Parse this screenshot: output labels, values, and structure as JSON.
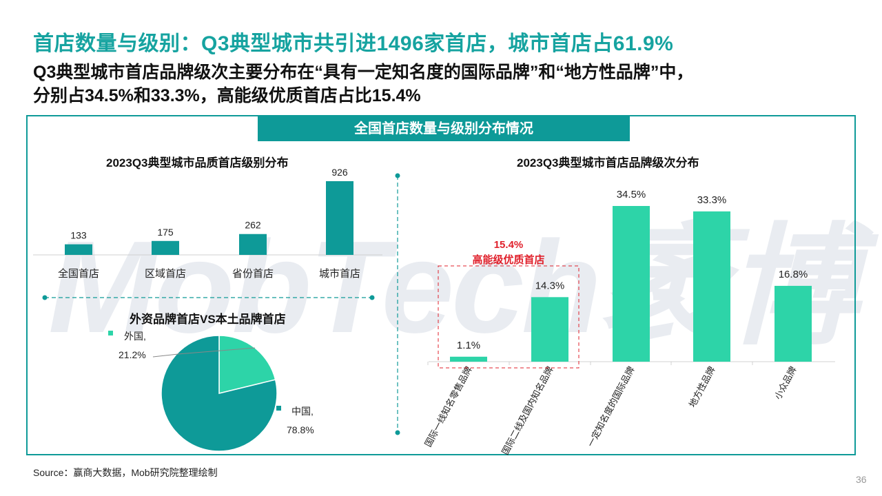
{
  "page": {
    "title": "首店数量与级别：Q3典型城市共引进1496家首店，城市首店占61.9%",
    "subtitle_line1": "Q3典型城市首店品牌级次主要分布在“具有一定知名度的国际品牌”和“地方性品牌”中，",
    "subtitle_line2": "分别占34.5%和33.3%，高能级优质首店占比15.4%",
    "panel_title": "全国首店数量与级别分布情况",
    "watermark": "MobTech袤博",
    "source": "Source：赢商大数据，Mob研究院整理绘制",
    "page_number": "36"
  },
  "chart_data": [
    {
      "type": "bar",
      "title": "2023Q3典型城市品质首店级别分布",
      "categories": [
        "全国首店",
        "区域首店",
        "省份首店",
        "城市首店"
      ],
      "values": [
        133,
        175,
        262,
        926
      ],
      "ylim": [
        0,
        926
      ],
      "color": "#0e9a98",
      "grid": false
    },
    {
      "type": "pie",
      "title": "外资品牌首店VS本土品牌首店",
      "labels": [
        "外国",
        "中国"
      ],
      "values": [
        21.2,
        78.8
      ],
      "value_labels": [
        "21.2%",
        "78.8%"
      ],
      "colors": [
        "#2dd4a8",
        "#0e9a98"
      ]
    },
    {
      "type": "bar",
      "title": "2023Q3典型城市首店品牌级次分布",
      "categories": [
        "国际一线知名零售品牌",
        "国际二线及国内知名品牌",
        "一定知名度的国际品牌",
        "地方性品牌",
        "小众品牌"
      ],
      "values": [
        1.1,
        14.3,
        34.5,
        33.3,
        16.8
      ],
      "value_labels": [
        "1.1%",
        "14.3%",
        "34.5%",
        "33.3%",
        "16.8%"
      ],
      "ylim": [
        0,
        34.5
      ],
      "color": "#2dd4a8",
      "grid": false,
      "annotation": {
        "value": "15.4%",
        "text": "高能级优质首店",
        "color": "#e0202b",
        "covers": [
          "国际一线知名零售品牌",
          "国际二线及国内知名品牌"
        ]
      }
    }
  ]
}
